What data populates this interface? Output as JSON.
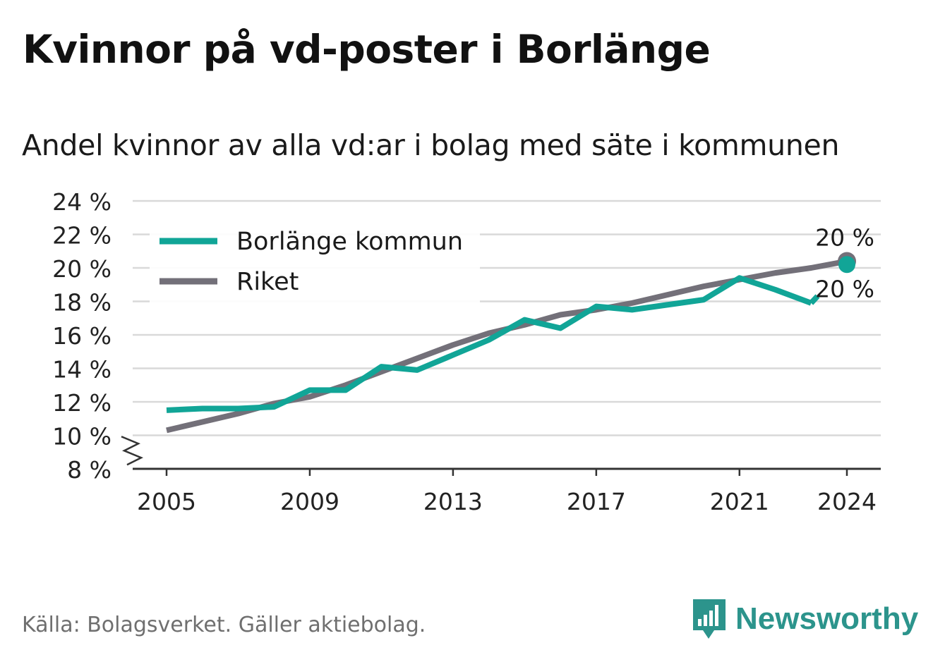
{
  "title": "Kvinnor på vd-poster i Borlänge",
  "subtitle": "Andel kvinnor av alla vd:ar i bolag med säte i kommunen",
  "source": "Källa: Bolagsverket. Gäller aktiebolag.",
  "brand": {
    "name": "Newsworthy",
    "icon": "newsworthy-logo-icon",
    "color": "#2c948c"
  },
  "chart_data": {
    "type": "line",
    "x": [
      2005,
      2006,
      2007,
      2008,
      2009,
      2010,
      2011,
      2012,
      2013,
      2014,
      2015,
      2016,
      2017,
      2018,
      2019,
      2020,
      2021,
      2022,
      2023,
      2024
    ],
    "series": [
      {
        "name": "Borlänge kommun",
        "color": "#11a597",
        "values": [
          11.5,
          11.6,
          11.6,
          11.7,
          12.7,
          12.7,
          14.1,
          13.9,
          14.8,
          15.7,
          16.9,
          16.4,
          17.7,
          17.5,
          17.8,
          18.1,
          19.4,
          18.7,
          17.9,
          20.2
        ]
      },
      {
        "name": "Riket",
        "color": "#737079",
        "values": [
          10.3,
          10.8,
          11.3,
          11.9,
          12.3,
          13.0,
          13.8,
          14.6,
          15.4,
          16.1,
          16.6,
          17.2,
          17.5,
          17.9,
          18.4,
          18.9,
          19.3,
          19.7,
          20.0,
          20.4
        ]
      }
    ],
    "end_labels": [
      "20 %",
      "20 %"
    ],
    "y_ticks": [
      "24 %",
      "22 %",
      "20 %",
      "18 %",
      "16 %",
      "14 %",
      "12 %",
      "10 %",
      "8 %"
    ],
    "x_ticks": [
      "2005",
      "2009",
      "2013",
      "2017",
      "2021",
      "2024"
    ],
    "ylim": [
      8,
      24
    ],
    "y_axis_break": true,
    "grid": true,
    "legend_position": "top-left"
  }
}
